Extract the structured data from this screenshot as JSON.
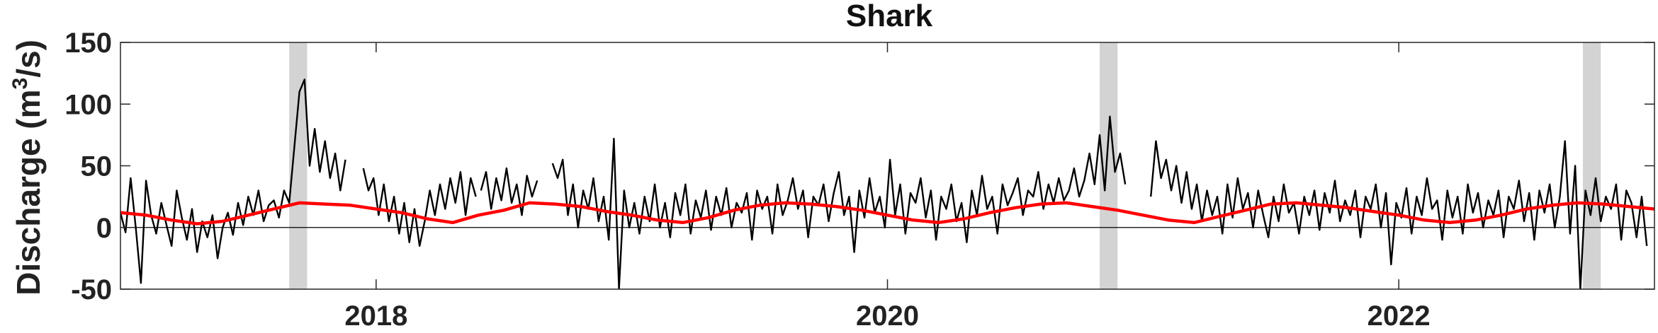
{
  "chart_data": {
    "type": "line",
    "title": "Shark",
    "ylabel": {
      "prefix": "Discharge (m",
      "superscript": "3",
      "suffix": "/s)"
    },
    "xlabel": "",
    "x_units": "year",
    "xlim": [
      2017.0,
      2023.0
    ],
    "ylim": [
      -50,
      150
    ],
    "x_ticks": [
      2018,
      2020,
      2022
    ],
    "y_ticks": [
      -50,
      0,
      50,
      100,
      150
    ],
    "grid": false,
    "zero_line": true,
    "shaded_periods": [
      [
        2017.66,
        2017.73
      ],
      [
        2020.83,
        2020.9
      ],
      [
        2022.72,
        2022.79
      ]
    ],
    "colors": {
      "discharge": "#000000",
      "seasonal": "#ff0000",
      "shade": "#d3d3d3"
    },
    "series": [
      {
        "key": "discharge",
        "segments": [
          {
            "x": [
              2017.0,
              2017.02,
              2017.04,
              2017.06,
              2017.08,
              2017.1,
              2017.12,
              2017.14,
              2017.16,
              2017.18,
              2017.2,
              2017.22,
              2017.24,
              2017.26,
              2017.28,
              2017.3,
              2017.32,
              2017.34,
              2017.36,
              2017.38,
              2017.4,
              2017.42,
              2017.44,
              2017.46,
              2017.48,
              2017.5,
              2017.52,
              2017.54,
              2017.56,
              2017.58,
              2017.6,
              2017.62,
              2017.64,
              2017.66,
              2017.68,
              2017.7,
              2017.72,
              2017.74,
              2017.76,
              2017.78,
              2017.8,
              2017.82,
              2017.84,
              2017.86,
              2017.88
            ],
            "y": [
              12,
              -4,
              40,
              0,
              -45,
              38,
              10,
              -5,
              20,
              2,
              -15,
              30,
              8,
              -10,
              15,
              -20,
              5,
              -8,
              10,
              -25,
              0,
              12,
              -6,
              20,
              2,
              25,
              10,
              30,
              5,
              18,
              22,
              8,
              30,
              20,
              65,
              110,
              120,
              50,
              80,
              45,
              70,
              40,
              60,
              30,
              55
            ]
          },
          {
            "x": [
              2017.95,
              2017.97,
              2017.99,
              2018.01,
              2018.03,
              2018.05,
              2018.07,
              2018.09,
              2018.11,
              2018.13,
              2018.15,
              2018.17,
              2018.19,
              2018.21,
              2018.23,
              2018.25,
              2018.27,
              2018.29,
              2018.31,
              2018.33,
              2018.35,
              2018.37,
              2018.39
            ],
            "y": [
              48,
              30,
              40,
              10,
              35,
              5,
              25,
              -5,
              20,
              -12,
              15,
              -15,
              5,
              30,
              10,
              35,
              15,
              40,
              20,
              45,
              10,
              40,
              25
            ]
          },
          {
            "x": [
              2018.41,
              2018.43,
              2018.45,
              2018.47,
              2018.49,
              2018.51,
              2018.53,
              2018.55,
              2018.57,
              2018.59,
              2018.61,
              2018.63
            ],
            "y": [
              30,
              45,
              15,
              40,
              22,
              48,
              20,
              35,
              10,
              42,
              25,
              38
            ]
          },
          {
            "x": [
              2018.69,
              2018.71,
              2018.73,
              2018.75,
              2018.77,
              2018.79,
              2018.81,
              2018.83,
              2018.85,
              2018.87,
              2018.89,
              2018.91,
              2018.93,
              2018.95,
              2018.97,
              2018.99,
              2019.01,
              2019.03,
              2019.05,
              2019.07,
              2019.09,
              2019.11,
              2019.13,
              2019.15,
              2019.17,
              2019.19,
              2019.21,
              2019.23,
              2019.25,
              2019.27,
              2019.29,
              2019.31,
              2019.33,
              2019.35,
              2019.37,
              2019.39,
              2019.41,
              2019.43,
              2019.45,
              2019.47,
              2019.49,
              2019.51,
              2019.53,
              2019.55,
              2019.57,
              2019.59,
              2019.61,
              2019.63,
              2019.65,
              2019.67,
              2019.69,
              2019.71,
              2019.73,
              2019.75,
              2019.77,
              2019.79,
              2019.81,
              2019.83,
              2019.85,
              2019.87,
              2019.89,
              2019.91,
              2019.93,
              2019.95,
              2019.97,
              2019.99,
              2020.01,
              2020.03,
              2020.05,
              2020.07,
              2020.09,
              2020.11,
              2020.13,
              2020.15,
              2020.17,
              2020.19,
              2020.21,
              2020.23,
              2020.25,
              2020.27,
              2020.29,
              2020.31,
              2020.33,
              2020.35,
              2020.37,
              2020.39,
              2020.41,
              2020.43,
              2020.45,
              2020.47,
              2020.49,
              2020.51,
              2020.53,
              2020.55,
              2020.57,
              2020.59,
              2020.61,
              2020.63,
              2020.65,
              2020.67,
              2020.69,
              2020.71,
              2020.73,
              2020.75,
              2020.77,
              2020.79,
              2020.81,
              2020.83,
              2020.85,
              2020.87,
              2020.89,
              2020.91,
              2020.93
            ],
            "y": [
              52,
              40,
              55,
              10,
              35,
              0,
              30,
              15,
              40,
              5,
              25,
              -10,
              72,
              -50,
              30,
              0,
              20,
              -5,
              25,
              5,
              35,
              0,
              20,
              -8,
              28,
              10,
              35,
              -5,
              22,
              8,
              30,
              -2,
              25,
              10,
              32,
              0,
              20,
              12,
              28,
              -10,
              30,
              15,
              25,
              -5,
              35,
              10,
              22,
              40,
              15,
              30,
              -8,
              25,
              18,
              35,
              5,
              28,
              45,
              10,
              25,
              -20,
              30,
              8,
              40,
              12,
              25,
              0,
              55,
              10,
              35,
              -5,
              28,
              20,
              40,
              8,
              30,
              -10,
              25,
              15,
              35,
              5,
              20,
              -12,
              30,
              10,
              42,
              15,
              25,
              -5,
              35,
              18,
              28,
              40,
              10,
              30,
              25,
              45,
              15,
              35,
              20,
              40,
              22,
              30,
              48,
              25,
              38,
              60,
              35,
              75,
              30,
              90,
              45,
              60,
              35
            ]
          },
          {
            "x": [
              2021.03,
              2021.05,
              2021.07,
              2021.09,
              2021.11,
              2021.13,
              2021.15,
              2021.17,
              2021.19,
              2021.21,
              2021.23,
              2021.25,
              2021.27,
              2021.29,
              2021.31,
              2021.33,
              2021.35,
              2021.37,
              2021.39,
              2021.41,
              2021.43,
              2021.45,
              2021.47,
              2021.49,
              2021.51,
              2021.53,
              2021.55,
              2021.57,
              2021.59,
              2021.61,
              2021.63,
              2021.65,
              2021.67,
              2021.69,
              2021.71,
              2021.73,
              2021.75,
              2021.77,
              2021.79,
              2021.81,
              2021.83,
              2021.85,
              2021.87,
              2021.89,
              2021.91,
              2021.93,
              2021.95,
              2021.97,
              2021.99,
              2022.01,
              2022.03,
              2022.05,
              2022.07,
              2022.09,
              2022.11,
              2022.13,
              2022.15,
              2022.17,
              2022.19,
              2022.21,
              2022.23,
              2022.25,
              2022.27,
              2022.29,
              2022.31,
              2022.33,
              2022.35,
              2022.37,
              2022.39,
              2022.41,
              2022.43,
              2022.45,
              2022.47,
              2022.49,
              2022.51,
              2022.53,
              2022.55,
              2022.57,
              2022.59,
              2022.61,
              2022.63,
              2022.65,
              2022.67,
              2022.69,
              2022.71,
              2022.73,
              2022.75,
              2022.77,
              2022.79,
              2022.81,
              2022.83,
              2022.85,
              2022.87,
              2022.89,
              2022.91,
              2022.93,
              2022.95,
              2022.97
            ],
            "y": [
              25,
              70,
              40,
              55,
              30,
              50,
              20,
              45,
              15,
              35,
              5,
              30,
              10,
              25,
              -5,
              35,
              8,
              40,
              15,
              28,
              0,
              30,
              10,
              -8,
              25,
              5,
              35,
              12,
              20,
              -5,
              25,
              10,
              30,
              -2,
              28,
              12,
              38,
              5,
              22,
              10,
              30,
              -8,
              25,
              15,
              35,
              0,
              28,
              -30,
              20,
              8,
              32,
              -5,
              25,
              10,
              40,
              15,
              22,
              -10,
              30,
              8,
              25,
              -5,
              35,
              12,
              28,
              0,
              22,
              10,
              30,
              -8,
              25,
              15,
              38,
              5,
              28,
              -10,
              30,
              12,
              35,
              0,
              25,
              70,
              -5,
              50,
              -50,
              30,
              10,
              40,
              5,
              25,
              15,
              35,
              -10,
              30,
              20,
              -8,
              25,
              -15
            ]
          }
        ]
      },
      {
        "key": "seasonal",
        "x": [
          2017.0,
          2017.1,
          2017.2,
          2017.3,
          2017.4,
          2017.5,
          2017.6,
          2017.7,
          2017.8,
          2017.9,
          2018.0,
          2018.1,
          2018.2,
          2018.3,
          2018.4,
          2018.5,
          2018.6,
          2018.7,
          2018.8,
          2018.9,
          2019.0,
          2019.1,
          2019.2,
          2019.3,
          2019.4,
          2019.5,
          2019.6,
          2019.7,
          2019.8,
          2019.9,
          2020.0,
          2020.1,
          2020.2,
          2020.3,
          2020.4,
          2020.5,
          2020.6,
          2020.7,
          2020.8,
          2020.9,
          2021.0,
          2021.1,
          2021.2,
          2021.3,
          2021.4,
          2021.5,
          2021.6,
          2021.7,
          2021.8,
          2021.9,
          2022.0,
          2022.1,
          2022.2,
          2022.3,
          2022.4,
          2022.5,
          2022.6,
          2022.7,
          2022.8,
          2022.9,
          2023.0
        ],
        "y": [
          12,
          10,
          6,
          3,
          5,
          10,
          15,
          20,
          19,
          18,
          15,
          12,
          7,
          4,
          10,
          14,
          20,
          19,
          17,
          13,
          10,
          6,
          4,
          8,
          14,
          18,
          20,
          19,
          17,
          14,
          10,
          6,
          4,
          7,
          12,
          16,
          19,
          20,
          17,
          14,
          10,
          6,
          4,
          9,
          14,
          19,
          20,
          18,
          16,
          13,
          10,
          6,
          4,
          6,
          10,
          15,
          18,
          20,
          19,
          17,
          15
        ]
      }
    ]
  }
}
